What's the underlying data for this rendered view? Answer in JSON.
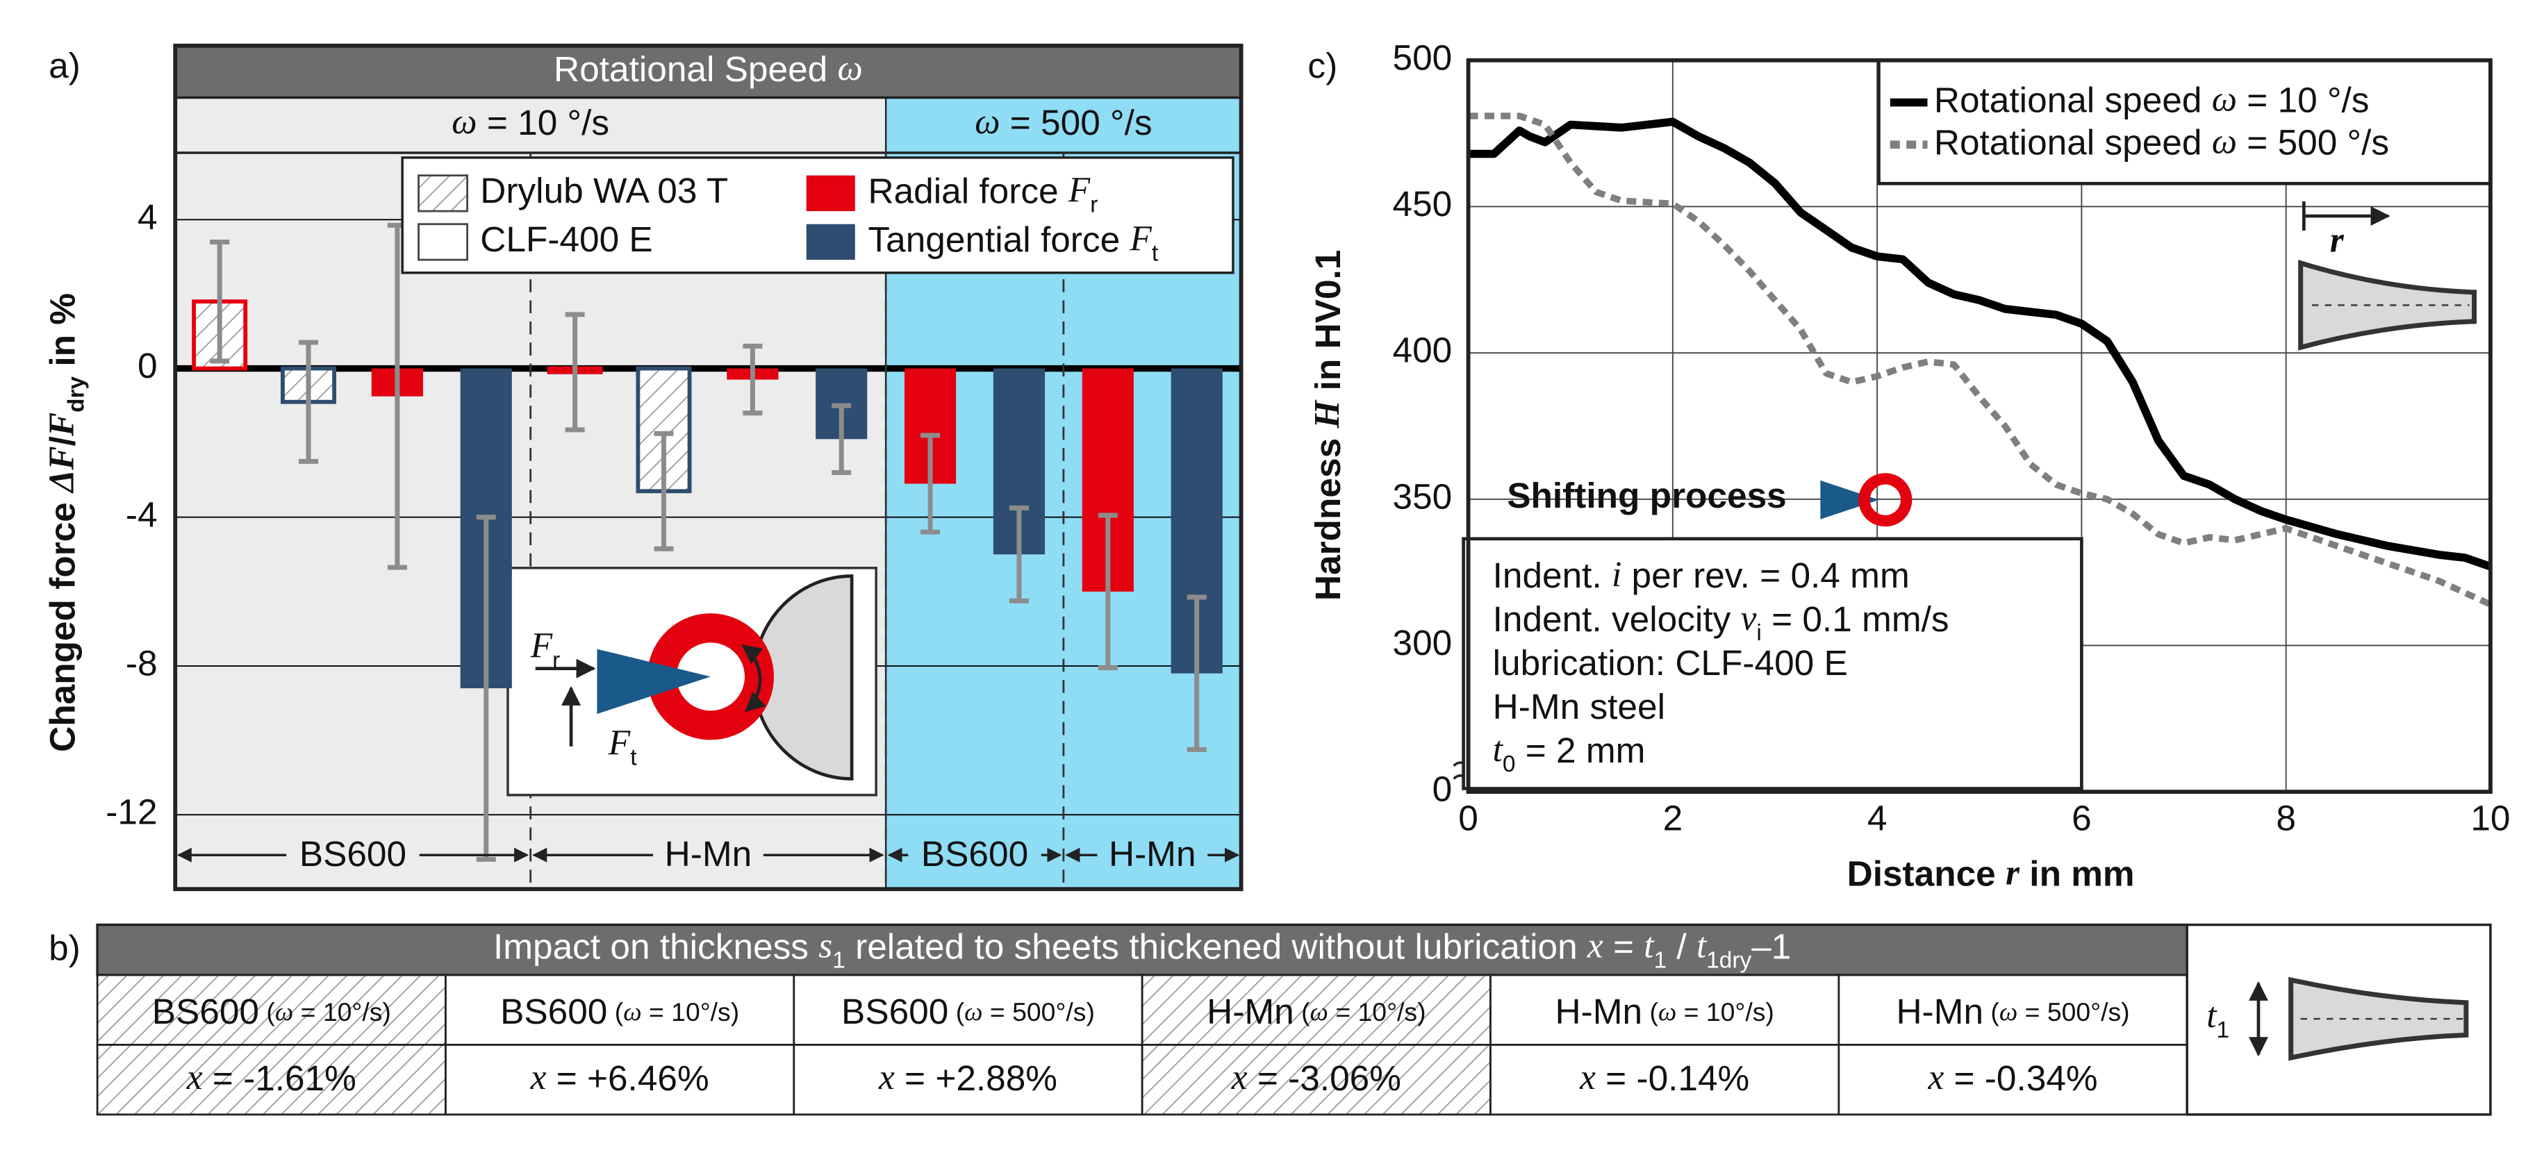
{
  "chart_data": [
    {
      "type": "bar",
      "panel": "a)",
      "header": [
        {
          "t": "Rotational Speed "
        },
        {
          "t": "ω",
          "i": true
        }
      ],
      "speeds": [
        [
          {
            "t": "ω",
            "i": true
          },
          {
            "t": " = 10 °/s"
          }
        ],
        [
          {
            "t": "ω",
            "i": true
          },
          {
            "t": " = 500 °/s"
          }
        ]
      ],
      "speed_colors": [
        "#ececec",
        "#8fdcf5"
      ],
      "groups": [
        {
          "name": "BS600",
          "speed": 0
        },
        {
          "name": "H-Mn",
          "speed": 0
        },
        {
          "name": "BS600",
          "speed": 1
        },
        {
          "name": "H-Mn",
          "speed": 1
        }
      ],
      "ylabel": [
        {
          "t": "Changed force "
        },
        {
          "t": "ΔF",
          "i": true
        },
        {
          "t": "/"
        },
        {
          "t": "F",
          "i": true
        },
        {
          "t": "dry",
          "sub": true
        },
        {
          "t": " in %"
        }
      ],
      "ylim": [
        -14,
        5.8
      ],
      "yticks": [
        4,
        0,
        -4,
        -8,
        -12
      ],
      "grid": true,
      "lubricants": [
        {
          "name": "Drylub WA 03 T",
          "hatched": true
        },
        {
          "name": "CLF-400 E",
          "hatched": false
        }
      ],
      "forces": [
        {
          "name": [
            {
              "t": "Radial force "
            },
            {
              "t": "F",
              "i": true
            },
            {
              "t": "r",
              "sub": true
            }
          ],
          "color": "#e3000f"
        },
        {
          "name": [
            {
              "t": "Tangential force "
            },
            {
              "t": "F",
              "i": true
            },
            {
              "t": "t",
              "sub": true
            }
          ],
          "color": "#2e4d70"
        }
      ],
      "bars": {
        "group": [
          0,
          0,
          0,
          0,
          1,
          1,
          1,
          1,
          2,
          2,
          3,
          3
        ],
        "lubricant": [
          0,
          0,
          1,
          1,
          0,
          0,
          1,
          1,
          1,
          1,
          1,
          1
        ],
        "force": [
          0,
          1,
          0,
          1,
          0,
          1,
          0,
          1,
          0,
          1,
          0,
          1
        ],
        "values": [
          1.8,
          -0.9,
          -0.75,
          -8.6,
          -0.1,
          -3.3,
          -0.3,
          -1.9,
          -3.1,
          -5.0,
          -6.0,
          -8.2
        ],
        "errors": [
          1.6,
          1.6,
          4.6,
          4.6,
          1.55,
          1.55,
          0.9,
          0.9,
          1.3,
          1.25,
          2.05,
          2.05
        ]
      },
      "inset": {
        "fr": [
          {
            "t": "F",
            "i": true
          },
          {
            "t": "r",
            "sub": true
          }
        ],
        "ft": [
          {
            "t": "F",
            "i": true
          },
          {
            "t": "t",
            "sub": true
          }
        ]
      }
    },
    {
      "type": "line",
      "panel": "c)",
      "xlabel": [
        {
          "t": "Distance "
        },
        {
          "t": "r",
          "i": true
        },
        {
          "t": " in mm"
        }
      ],
      "ylabel": [
        {
          "t": "Hardness "
        },
        {
          "t": "H",
          "i": true
        },
        {
          "t": " in HV0.1"
        }
      ],
      "xlim": [
        0,
        10
      ],
      "xticks": [
        0,
        2,
        4,
        6,
        8,
        10
      ],
      "ylim": [
        250,
        500
      ],
      "yticks": [
        0,
        300,
        350,
        400,
        450,
        500
      ],
      "axis_break": true,
      "grid": true,
      "series": [
        {
          "name": [
            {
              "t": "Rotational speed "
            },
            {
              "t": "ω",
              "i": true
            },
            {
              "t": " = 10 °/s"
            }
          ],
          "color": "#000000",
          "dashed": false,
          "x": [
            0,
            0.25,
            0.5,
            0.6,
            0.75,
            1,
            1.5,
            2,
            2.25,
            2.5,
            2.75,
            3,
            3.25,
            3.5,
            3.75,
            4,
            4.25,
            4.5,
            4.75,
            5,
            5.25,
            5.5,
            5.75,
            6,
            6.25,
            6.5,
            6.75,
            7,
            7.25,
            7.5,
            7.75,
            8,
            8.5,
            9,
            9.5,
            9.75,
            10
          ],
          "values": [
            468,
            468,
            476,
            474,
            472,
            478,
            477,
            479,
            474,
            470,
            465,
            458,
            448,
            442,
            436,
            433,
            432,
            424,
            420,
            418,
            415,
            414,
            413,
            410,
            404,
            390,
            370,
            358,
            355,
            350,
            346,
            343,
            338,
            334,
            331,
            330,
            327
          ]
        },
        {
          "name": [
            {
              "t": "Rotational speed "
            },
            {
              "t": "ω",
              "i": true
            },
            {
              "t": " = 500 °/s"
            }
          ],
          "color": "#7f7f7f",
          "dashed": true,
          "x": [
            0,
            0.5,
            0.75,
            1,
            1.25,
            1.5,
            2,
            2.25,
            2.5,
            2.75,
            3,
            3.25,
            3.5,
            3.75,
            4,
            4.25,
            4.5,
            4.75,
            5,
            5.25,
            5.5,
            5.75,
            6,
            6.25,
            6.5,
            6.75,
            7,
            7.25,
            7.5,
            8,
            8.5,
            9,
            9.5,
            10
          ],
          "values": [
            481,
            481,
            478,
            465,
            455,
            452,
            451,
            445,
            437,
            428,
            418,
            408,
            393,
            390,
            392,
            395,
            397,
            396,
            385,
            375,
            362,
            355,
            352,
            350,
            345,
            338,
            335,
            337,
            336,
            340,
            334,
            328,
            322,
            314
          ]
        }
      ],
      "annotation": "Shifting process",
      "notes": [
        [
          {
            "t": "Indent. "
          },
          {
            "t": "i",
            "i": true
          },
          {
            "t": " per rev. = 0.4 mm"
          }
        ],
        [
          {
            "t": "Indent. velocity "
          },
          {
            "t": "v",
            "i": true
          },
          {
            "t": "i",
            "sub": true
          },
          {
            "t": " = 0.1 mm/s"
          }
        ],
        [
          {
            "t": "lubrication: CLF-400 E"
          }
        ],
        [
          {
            "t": "H-Mn steel"
          }
        ],
        [
          {
            "t": "t",
            "i": true
          },
          {
            "t": "0",
            "sub": true
          },
          {
            "t": " = 2 mm"
          }
        ]
      ],
      "inset_label": [
        {
          "t": "r",
          "i": true
        }
      ]
    }
  ],
  "table": {
    "label": "b)",
    "title": [
      {
        "t": "Impact on thickness "
      },
      {
        "t": "s",
        "i": true
      },
      {
        "t": "1",
        "sub": true
      },
      {
        "t": " related to sheets thickened without lubrication "
      },
      {
        "t": "x",
        "i": true
      },
      {
        "t": " = "
      },
      {
        "t": "t",
        "i": true
      },
      {
        "t": "1",
        "sub": true
      },
      {
        "t": " / "
      },
      {
        "t": "t",
        "i": true
      },
      {
        "t": "1dry",
        "sub": true
      },
      {
        "t": "–1"
      }
    ],
    "columns": [
      {
        "name": "BS600",
        "condition": [
          {
            "t": "("
          },
          {
            "t": "ω",
            "i": true
          },
          {
            "t": " = 10°/s)"
          }
        ],
        "value": [
          {
            "t": "x",
            "i": true
          },
          {
            "t": " = -1.61%"
          }
        ],
        "hatched": true
      },
      {
        "name": "BS600",
        "condition": [
          {
            "t": "("
          },
          {
            "t": "ω",
            "i": true
          },
          {
            "t": " = 10°/s)"
          }
        ],
        "value": [
          {
            "t": "x",
            "i": true
          },
          {
            "t": " = +6.46%"
          }
        ],
        "hatched": false
      },
      {
        "name": "BS600",
        "condition": [
          {
            "t": "("
          },
          {
            "t": "ω",
            "i": true
          },
          {
            "t": " = 500°/s)"
          }
        ],
        "value": [
          {
            "t": "x",
            "i": true
          },
          {
            "t": " = +2.88%"
          }
        ],
        "hatched": false
      },
      {
        "name": "H-Mn",
        "condition": [
          {
            "t": "("
          },
          {
            "t": "ω",
            "i": true
          },
          {
            "t": " = 10°/s)"
          }
        ],
        "value": [
          {
            "t": "x",
            "i": true
          },
          {
            "t": " = -3.06%"
          }
        ],
        "hatched": true
      },
      {
        "name": "H-Mn",
        "condition": [
          {
            "t": "("
          },
          {
            "t": "ω",
            "i": true
          },
          {
            "t": " = 10°/s)"
          }
        ],
        "value": [
          {
            "t": "x",
            "i": true
          },
          {
            "t": " = -0.14%"
          }
        ],
        "hatched": false
      },
      {
        "name": "H-Mn",
        "condition": [
          {
            "t": "("
          },
          {
            "t": "ω",
            "i": true
          },
          {
            "t": " = 500°/s)"
          }
        ],
        "value": [
          {
            "t": "x",
            "i": true
          },
          {
            "t": " = -0.34%"
          }
        ],
        "hatched": false
      }
    ],
    "diagram_label": [
      {
        "t": "t",
        "i": true
      },
      {
        "t": "1",
        "sub": true
      }
    ]
  }
}
